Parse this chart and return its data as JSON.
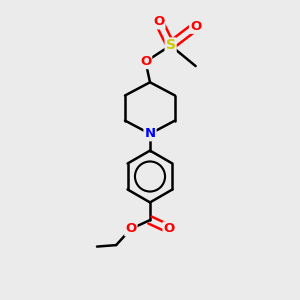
{
  "background_color": "#ebebeb",
  "bond_color": "#000000",
  "bond_width": 1.8,
  "atom_colors": {
    "N": "#0000ff",
    "O": "#ff0000",
    "S": "#cccc00",
    "C": "#000000"
  },
  "figsize": [
    3.0,
    3.0
  ],
  "dpi": 100,
  "xlim": [
    0,
    10
  ],
  "ylim": [
    0,
    10
  ]
}
